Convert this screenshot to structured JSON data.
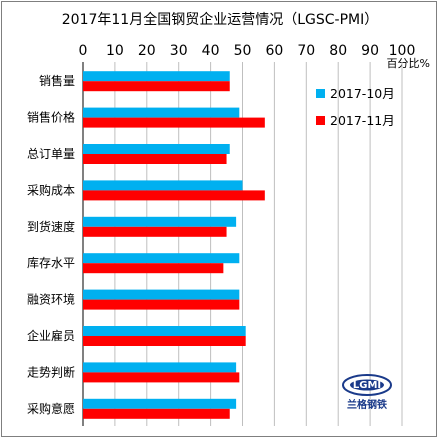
{
  "chart_data": {
    "type": "bar",
    "orientation": "horizontal",
    "title": "2017年11月全国钢贸企业运营情况（LGSC-PMI）",
    "unit_label": "百分比%",
    "xlim": [
      0,
      100
    ],
    "x_ticks": [
      0,
      10,
      20,
      30,
      40,
      50,
      60,
      70,
      80,
      90,
      100
    ],
    "grid": true,
    "legend_position": "top-right",
    "categories": [
      "销售量",
      "销售价格",
      "总订单量",
      "采购成本",
      "到货速度",
      "库存水平",
      "融资环境",
      "企业雇员",
      "走势判断",
      "采购意愿"
    ],
    "series": [
      {
        "name": "2017-10月",
        "color": "#00b0f0",
        "values": [
          46,
          49,
          46,
          50,
          48,
          49,
          49,
          51,
          48,
          48
        ]
      },
      {
        "name": "2017-11月",
        "color": "#ff0000",
        "values": [
          46,
          57,
          45,
          57,
          45,
          44,
          49,
          51,
          49,
          46
        ]
      }
    ]
  },
  "logo": {
    "text": "LGMI",
    "caption": "兰格钢铁"
  }
}
